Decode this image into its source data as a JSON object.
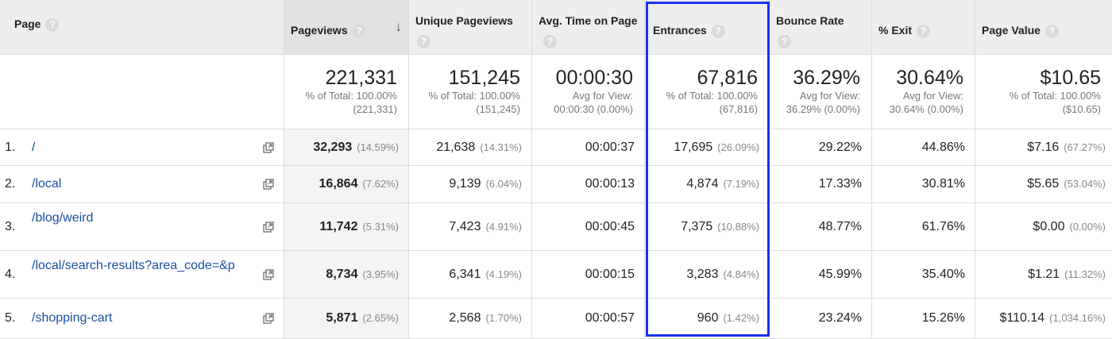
{
  "columns": {
    "page": "Page",
    "pageviews": "Pageviews",
    "unique_pageviews": "Unique Pageviews",
    "avg_time": "Avg. Time on Page",
    "entrances": "Entrances",
    "bounce_rate": "Bounce Rate",
    "exit": "% Exit",
    "page_value": "Page Value",
    "help_glyph": "?",
    "sort_glyph": "↓"
  },
  "totals": {
    "pageviews": {
      "value": "221,331",
      "line1": "% of Total: 100.00%",
      "line2": "(221,331)"
    },
    "unique_pageviews": {
      "value": "151,245",
      "line1": "% of Total: 100.00%",
      "line2": "(151,245)"
    },
    "avg_time": {
      "value": "00:00:30",
      "line1": "Avg for View:",
      "line2": "00:00:30 (0.00%)"
    },
    "entrances": {
      "value": "67,816",
      "line1": "% of Total: 100.00%",
      "line2": "(67,816)"
    },
    "bounce_rate": {
      "value": "36.29%",
      "line1": "Avg for View:",
      "line2": "36.29% (0.00%)"
    },
    "exit": {
      "value": "30.64%",
      "line1": "Avg for View:",
      "line2": "30.64% (0.00%)"
    },
    "page_value": {
      "value": "$10.65",
      "line1": "% of Total: 100.00%",
      "line2": "($10.65)"
    }
  },
  "rows": [
    {
      "index": "1.",
      "page": "/",
      "pageviews": "32,293",
      "pageviews_pct": "(14.59%)",
      "unique": "21,638",
      "unique_pct": "(14.31%)",
      "avg_time": "00:00:37",
      "entrances": "17,695",
      "entrances_pct": "(26.09%)",
      "bounce": "29.22%",
      "exit": "44.86%",
      "value": "$7.16",
      "value_pct": "(67.27%)"
    },
    {
      "index": "2.",
      "page": "/local",
      "pageviews": "16,864",
      "pageviews_pct": "(7.62%)",
      "unique": "9,139",
      "unique_pct": "(6.04%)",
      "avg_time": "00:00:13",
      "entrances": "4,874",
      "entrances_pct": "(7.19%)",
      "bounce": "17.33%",
      "exit": "30.81%",
      "value": "$5.65",
      "value_pct": "(53.04%)"
    },
    {
      "index": "3.",
      "page": "/blog/weird",
      "pageviews": "11,742",
      "pageviews_pct": "(5.31%)",
      "unique": "7,423",
      "unique_pct": "(4.91%)",
      "avg_time": "00:00:45",
      "entrances": "7,375",
      "entrances_pct": "(10.88%)",
      "bounce": "48.77%",
      "exit": "61.76%",
      "value": "$0.00",
      "value_pct": "(0.00%)"
    },
    {
      "index": "4.",
      "page": "/local/search-results?area_code=&p",
      "pageviews": "8,734",
      "pageviews_pct": "(3.95%)",
      "unique": "6,341",
      "unique_pct": "(4.19%)",
      "avg_time": "00:00:15",
      "entrances": "3,283",
      "entrances_pct": "(4.84%)",
      "bounce": "45.99%",
      "exit": "35.40%",
      "value": "$1.21",
      "value_pct": "(11.32%)"
    },
    {
      "index": "5.",
      "page": "/shopping-cart",
      "pageviews": "5,871",
      "pageviews_pct": "(2.65%)",
      "unique": "2,568",
      "unique_pct": "(1.70%)",
      "avg_time": "00:00:57",
      "entrances": "960",
      "entrances_pct": "(1.42%)",
      "bounce": "23.24%",
      "exit": "15.26%",
      "value": "$110.14",
      "value_pct": "(1,034.16%)"
    }
  ],
  "colors": {
    "highlight": "#1a33ee",
    "link": "#1a4fa0"
  },
  "icons": {
    "help": "help-icon",
    "sort": "sort-descending-icon",
    "external": "open-in-new-icon"
  }
}
